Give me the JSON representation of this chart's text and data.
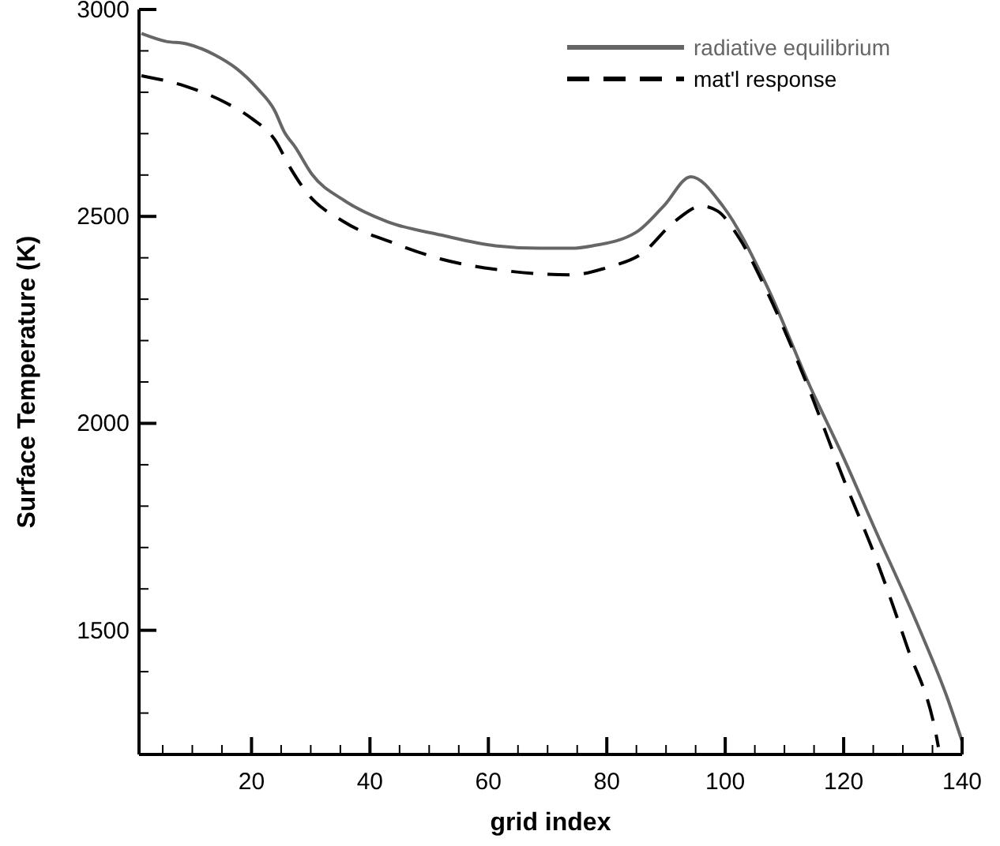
{
  "chart_data": {
    "type": "line",
    "xlabel": "grid index",
    "ylabel": "Surface Temperature (K)",
    "xlim": [
      1,
      140
    ],
    "xticks": [
      20,
      40,
      60,
      80,
      100,
      120,
      140
    ],
    "ylim": [
      1200,
      3000
    ],
    "yticks": [
      1500,
      2000,
      2500,
      3000
    ],
    "grid": false,
    "legend": "top right",
    "series": [
      {
        "name": "radiative equilibrium",
        "color": "#666666",
        "line_style": "solid",
        "x": [
          1.4,
          5.5,
          9,
          13.7,
          17.3,
          21,
          23.9,
          25.5,
          27.4,
          30.2,
          35.6,
          43,
          52,
          61.2,
          68.6,
          74,
          77.6,
          85,
          89.6,
          94.2,
          99.6,
          107,
          114.3,
          119.8,
          125.3,
          132.5,
          137.6,
          140
        ],
        "values": [
          2942,
          2923,
          2917,
          2891,
          2859,
          2809,
          2756,
          2705,
          2667,
          2602,
          2539,
          2487,
          2455,
          2429,
          2423,
          2423,
          2429,
          2462,
          2525,
          2596,
          2525,
          2333,
          2090,
          1923,
          1744,
          1513,
          1333,
          1232
        ]
      },
      {
        "name": "mat'l response",
        "color": "#000000",
        "line_style": "dashed",
        "x": [
          1.4,
          9,
          15.6,
          20,
          23.9,
          26.6,
          29.3,
          35.6,
          43.9,
          52,
          61.2,
          74,
          80.4,
          85.9,
          91.4,
          96,
          98.7,
          102.3,
          107,
          114.3,
          119.8,
          125.3,
          130.7,
          135.7,
          136
        ],
        "values": [
          2840,
          2814,
          2775,
          2737,
          2686,
          2616,
          2558,
          2487,
          2436,
          2397,
          2372,
          2359,
          2378,
          2410,
          2487,
          2525,
          2513,
          2449,
          2320,
          2077,
          1872,
          1679,
          1461,
          1241,
          1218
        ]
      }
    ]
  }
}
